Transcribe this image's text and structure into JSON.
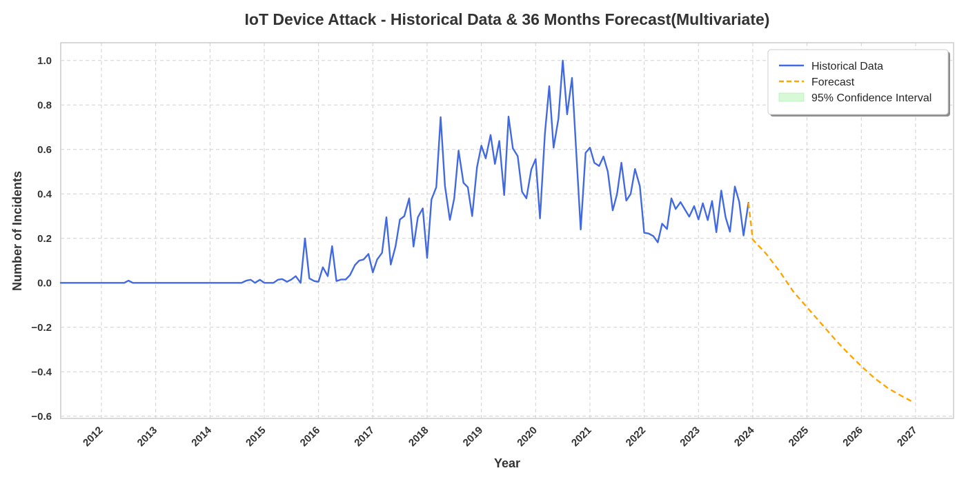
{
  "chart_data": {
    "type": "line",
    "title": "IoT Device Attack - Historical Data & 36 Months Forecast(Multivariate)",
    "xlabel": "Year",
    "ylabel": "Number of Incidents",
    "xlim": [
      2011.25,
      2027.7
    ],
    "ylim": [
      -0.61,
      1.08
    ],
    "x_ticks": [
      2012,
      2013,
      2014,
      2015,
      2016,
      2017,
      2018,
      2019,
      2020,
      2021,
      2022,
      2023,
      2024,
      2025,
      2026,
      2027
    ],
    "x_tick_labels": [
      "2012",
      "2013",
      "2014",
      "2015",
      "2016",
      "2017",
      "2018",
      "2019",
      "2020",
      "2021",
      "2022",
      "2023",
      "2024",
      "2025",
      "2026",
      "2027"
    ],
    "y_ticks": [
      -0.6,
      -0.4,
      -0.2,
      0.0,
      0.2,
      0.4,
      0.6,
      0.8,
      1.0
    ],
    "y_tick_labels": [
      "−0.6",
      "−0.4",
      "−0.2",
      "0.0",
      "0.2",
      "0.4",
      "0.6",
      "0.8",
      "1.0"
    ],
    "grid": true,
    "legend_position": "top-right",
    "series": [
      {
        "name": "Historical Data",
        "color": "#4169e1",
        "style": "solid",
        "x": [
          2011.25,
          2012.42,
          2012.5,
          2012.58,
          2014.58,
          2014.67,
          2014.75,
          2014.83,
          2014.92,
          2015.0,
          2015.08,
          2015.17,
          2015.25,
          2015.33,
          2015.42,
          2015.5,
          2015.58,
          2015.67,
          2015.75,
          2015.83,
          2015.92,
          2016.0,
          2016.08,
          2016.17,
          2016.25,
          2016.33,
          2016.42,
          2016.5,
          2016.58,
          2016.67,
          2016.75,
          2016.83,
          2016.92,
          2017.0,
          2017.08,
          2017.17,
          2017.25,
          2017.33,
          2017.42,
          2017.5,
          2017.58,
          2017.67,
          2017.75,
          2017.83,
          2017.92,
          2018.0,
          2018.08,
          2018.17,
          2018.25,
          2018.33,
          2018.42,
          2018.5,
          2018.58,
          2018.67,
          2018.75,
          2018.83,
          2018.92,
          2019.0,
          2019.08,
          2019.17,
          2019.25,
          2019.33,
          2019.42,
          2019.5,
          2019.58,
          2019.67,
          2019.75,
          2019.83,
          2019.92,
          2020.0,
          2020.08,
          2020.17,
          2020.25,
          2020.33,
          2020.42,
          2020.5,
          2020.58,
          2020.67,
          2020.75,
          2020.83,
          2020.92,
          2021.0,
          2021.08,
          2021.17,
          2021.25,
          2021.33,
          2021.42,
          2021.5,
          2021.58,
          2021.67,
          2021.75,
          2021.83,
          2021.92,
          2022.0,
          2022.08,
          2022.17,
          2022.25,
          2022.33,
          2022.42,
          2022.5,
          2022.58,
          2022.67,
          2022.75,
          2022.83,
          2022.92,
          2023.0,
          2023.08,
          2023.17,
          2023.25,
          2023.33,
          2023.42,
          2023.5,
          2023.58,
          2023.67,
          2023.75,
          2023.83,
          2023.92
        ],
        "values": [
          0.0,
          0.0,
          0.01,
          0.0,
          0.0,
          0.01,
          0.014,
          0.0,
          0.014,
          0.0,
          0.0,
          0.0,
          0.014,
          0.017,
          0.005,
          0.015,
          0.03,
          0.0,
          0.2,
          0.02,
          0.008,
          0.005,
          0.07,
          0.03,
          0.165,
          0.008,
          0.015,
          0.015,
          0.035,
          0.08,
          0.1,
          0.105,
          0.13,
          0.047,
          0.105,
          0.135,
          0.295,
          0.082,
          0.165,
          0.285,
          0.3,
          0.38,
          0.163,
          0.295,
          0.335,
          0.112,
          0.375,
          0.43,
          0.745,
          0.435,
          0.283,
          0.38,
          0.595,
          0.45,
          0.43,
          0.3,
          0.52,
          0.617,
          0.56,
          0.665,
          0.535,
          0.638,
          0.395,
          0.748,
          0.605,
          0.57,
          0.41,
          0.38,
          0.51,
          0.557,
          0.29,
          0.67,
          0.885,
          0.608,
          0.738,
          1.0,
          0.758,
          0.922,
          0.58,
          0.24,
          0.585,
          0.608,
          0.54,
          0.526,
          0.568,
          0.5,
          0.326,
          0.4,
          0.54,
          0.37,
          0.4,
          0.512,
          0.435,
          0.225,
          0.222,
          0.21,
          0.182,
          0.266,
          0.242,
          0.38,
          0.332,
          0.363,
          0.33,
          0.298,
          0.345,
          0.285,
          0.358,
          0.282,
          0.368,
          0.228,
          0.415,
          0.295,
          0.23,
          0.433,
          0.365,
          0.213,
          0.36
        ]
      },
      {
        "name": "Forecast",
        "color": "#ffa500",
        "style": "dashed",
        "x": [
          2023.92,
          2024.0,
          2024.25,
          2024.5,
          2024.75,
          2025.0,
          2025.25,
          2025.5,
          2025.75,
          2026.0,
          2026.25,
          2026.5,
          2026.75,
          2026.92
        ],
        "values": [
          0.36,
          0.195,
          0.13,
          0.05,
          -0.04,
          -0.11,
          -0.18,
          -0.25,
          -0.315,
          -0.375,
          -0.43,
          -0.475,
          -0.51,
          -0.532
        ]
      }
    ],
    "legend_entries": [
      {
        "label": "Historical Data",
        "color": "#4169e1",
        "style": "solid"
      },
      {
        "label": "Forecast",
        "color": "#ffa500",
        "style": "dashed"
      },
      {
        "label": "95% Confidence Interval",
        "color": "#90ee90",
        "style": "patch"
      }
    ]
  }
}
